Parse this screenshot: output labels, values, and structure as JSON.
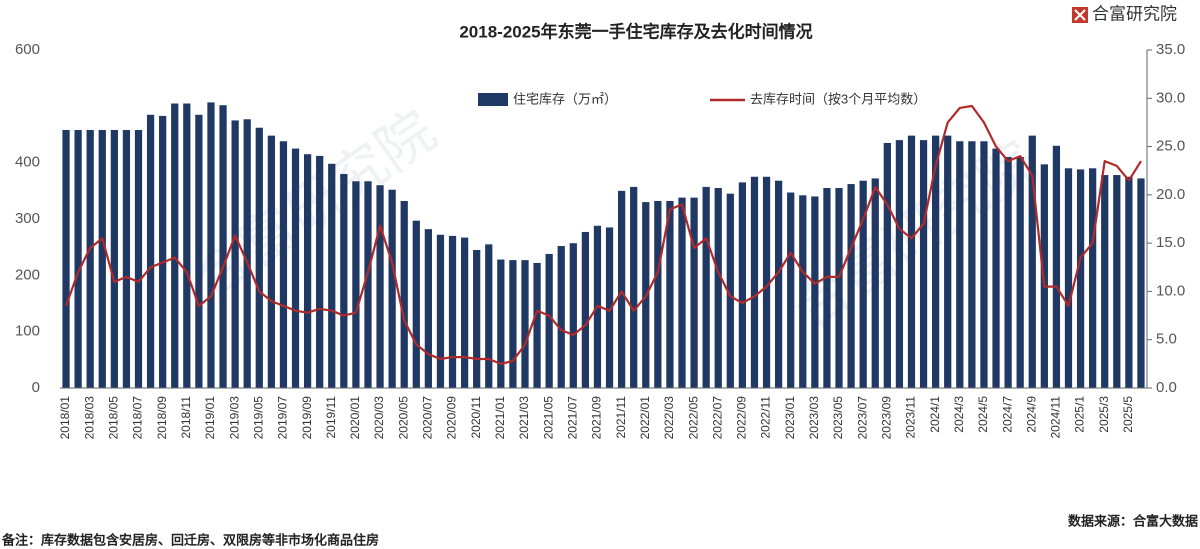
{
  "logo": "合富研究院",
  "watermark": "合富研究院",
  "source": "数据来源：合富大数据",
  "note": "备注：库存数据包含安居房、回迁房、双限房等非市场化商品住房",
  "chart_data": {
    "type": "bar-line",
    "title": "2018-2025年东莞一手住宅库存及去化时间情况",
    "categories": [
      "2018/01",
      null,
      "2018/03",
      null,
      "2018/05",
      null,
      "2018/07",
      null,
      "2018/09",
      null,
      "2018/11",
      null,
      "2019/01",
      null,
      "2019/03",
      null,
      "2019/05",
      null,
      "2019/07",
      null,
      "2019/09",
      null,
      "2019/11",
      null,
      "2020/01",
      null,
      "2020/03",
      null,
      "2020/05",
      null,
      "2020/07",
      null,
      "2020/09",
      null,
      "2020/11",
      null,
      "2021/01",
      null,
      "2021/03",
      null,
      "2021/05",
      null,
      "2021/07",
      null,
      "2021/09",
      null,
      "2021/11",
      null,
      "2022/01",
      null,
      "2022/03",
      null,
      "2022/05",
      null,
      "2022/07",
      null,
      "2022/09",
      null,
      "2022/11",
      null,
      "2023/01",
      null,
      "2023/03",
      null,
      "2023/05",
      null,
      "2023/07",
      null,
      "2023/09",
      null,
      "2023/11",
      null,
      "2024/1",
      null,
      "2024/3",
      null,
      "2024/5",
      null,
      "2024/7",
      null,
      "2024/9",
      null,
      "2024/11",
      null,
      "2025/1",
      null,
      "2025/3",
      null,
      "2025/5",
      null
    ],
    "series": [
      {
        "name": "住宅库存（万㎡）",
        "color": "#1f3864",
        "type": "bar",
        "values": [
          458,
          458,
          458,
          458,
          458,
          458,
          458,
          485,
          483,
          505,
          505,
          485,
          507,
          502,
          475,
          477,
          462,
          448,
          438,
          425,
          415,
          412,
          398,
          380,
          367,
          367,
          360,
          352,
          332,
          297,
          282,
          272,
          270,
          267,
          245,
          255,
          228,
          227,
          227,
          222,
          238,
          252,
          257,
          277,
          288,
          285,
          350,
          357,
          330,
          332,
          332,
          338,
          338,
          357,
          355,
          345,
          365,
          375,
          375,
          368,
          347,
          342,
          340,
          355,
          355,
          362,
          368,
          372,
          435,
          440,
          448,
          440,
          448,
          448,
          438,
          438,
          438,
          425,
          410,
          410,
          448,
          397,
          430,
          390,
          388,
          390,
          378,
          378,
          375,
          372
        ]
      },
      {
        "name": "去库存时间（按3个月平均数）",
        "color": "#b02a2a",
        "type": "line",
        "axis": "y2",
        "values": [
          8.5,
          12,
          14.5,
          15.5,
          11,
          11.5,
          11,
          12.5,
          13,
          13.5,
          12,
          8.5,
          9.5,
          12.5,
          15.8,
          13,
          10,
          9,
          8.5,
          8,
          7.8,
          8.2,
          8,
          7.5,
          7.8,
          12,
          16.8,
          13,
          7,
          4.5,
          3.5,
          3,
          3.2,
          3.2,
          3,
          3,
          2.5,
          2.8,
          4.5,
          8,
          7.5,
          6,
          5.5,
          6.5,
          8.5,
          8,
          10,
          8,
          9.5,
          12,
          18.5,
          19,
          14.5,
          15.5,
          12,
          9.5,
          8.8,
          9.5,
          10.5,
          12,
          14,
          12,
          10.8,
          11.5,
          11.5,
          14.5,
          17.5,
          20.8,
          19,
          16.5,
          15.5,
          17,
          23,
          27.5,
          29,
          29.2,
          27.5,
          25,
          23.5,
          24,
          22,
          10.5,
          10.5,
          8.5,
          13.5,
          15,
          23.5,
          23,
          21.5,
          23.5
        ]
      }
    ],
    "ylim": [
      0,
      600
    ],
    "yticks": [
      0,
      100,
      200,
      300,
      400,
      600
    ],
    "y2lim": [
      0,
      35
    ],
    "y2ticks": [
      {
        "value": 0,
        "label": "0.0"
      },
      {
        "value": 5,
        "label": "5.0"
      },
      {
        "value": 10,
        "label": "10.0"
      },
      {
        "value": 15,
        "label": "15.0"
      },
      {
        "value": 20,
        "label": "20.0"
      },
      {
        "value": 25,
        "label": "25.0"
      },
      {
        "value": 30,
        "label": "30.0"
      },
      {
        "value": 35,
        "label": "35.0"
      }
    ],
    "grid": false,
    "legend": "top"
  }
}
